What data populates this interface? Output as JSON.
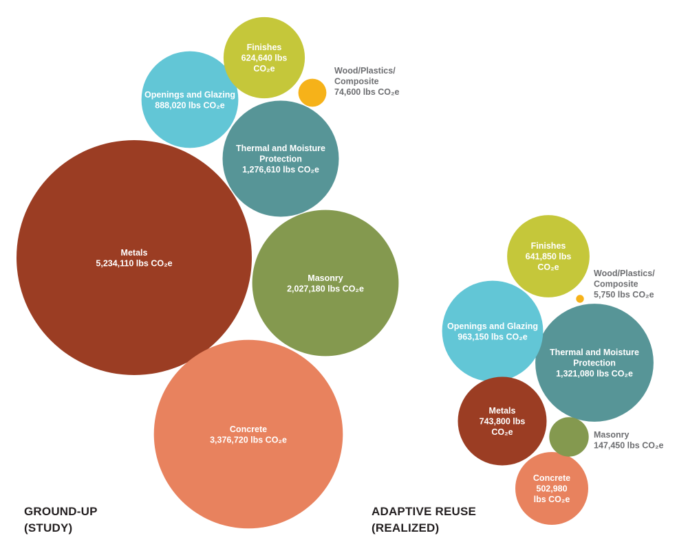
{
  "chart_data": [
    {
      "type": "bubble",
      "title_lines": [
        "GROUND-UP",
        "(STUDY)"
      ],
      "unit": "lbs CO₂e",
      "series": [
        {
          "key": "metals",
          "name": "Metals",
          "value": 5234110,
          "color": "#9b3d23",
          "label": [
            "Metals",
            "5,234,110 lbs CO₂e"
          ]
        },
        {
          "key": "concrete",
          "name": "Concrete",
          "value": 3376720,
          "color": "#e8825e",
          "label": [
            "Concrete",
            "3,376,720 lbs CO₂e"
          ]
        },
        {
          "key": "masonry",
          "name": "Masonry",
          "value": 2027180,
          "color": "#84994f",
          "label": [
            "Masonry",
            "2,027,180 lbs CO₂e"
          ]
        },
        {
          "key": "thermal",
          "name": "Thermal and Moisture Protection",
          "value": 1276610,
          "color": "#579597",
          "label": [
            "Thermal and Moisture",
            "Protection",
            "1,276,610 lbs CO₂e"
          ]
        },
        {
          "key": "openings",
          "name": "Openings and Glazing",
          "value": 888020,
          "color": "#62c6d6",
          "label": [
            "Openings and Glazing",
            "888,020 lbs CO₂e"
          ]
        },
        {
          "key": "finishes",
          "name": "Finishes",
          "value": 624640,
          "color": "#c5c73a",
          "label": [
            "Finishes",
            "624,640 lbs",
            "CO₂e"
          ]
        },
        {
          "key": "wood",
          "name": "Wood/Plastics/Composite",
          "value": 74600,
          "color": "#f6b219",
          "label": [
            "Wood/Plastics/",
            "Composite",
            "74,600 lbs CO₂e"
          ]
        }
      ]
    },
    {
      "type": "bubble",
      "title_lines": [
        "ADAPTIVE REUSE",
        "(REALIZED)"
      ],
      "unit": "lbs CO₂e",
      "series": [
        {
          "key": "thermal",
          "name": "Thermal and Moisture Protection",
          "value": 1321080,
          "color": "#579597",
          "label": [
            "Thermal and Moisture",
            "Protection",
            "1,321,080 lbs CO₂e"
          ]
        },
        {
          "key": "openings",
          "name": "Openings and Glazing",
          "value": 963150,
          "color": "#62c6d6",
          "label": [
            "Openings and Glazing",
            "963,150 lbs CO₂e"
          ]
        },
        {
          "key": "metals",
          "name": "Metals",
          "value": 743800,
          "color": "#9b3d23",
          "label": [
            "Metals",
            "743,800 lbs",
            "CO₂e"
          ]
        },
        {
          "key": "finishes",
          "name": "Finishes",
          "value": 641850,
          "color": "#c5c73a",
          "label": [
            "Finishes",
            "641,850 lbs",
            "CO₂e"
          ]
        },
        {
          "key": "concrete",
          "name": "Concrete",
          "value": 502980,
          "color": "#e8825e",
          "label": [
            "Concrete",
            "502,980",
            "lbs CO₂e"
          ]
        },
        {
          "key": "masonry",
          "name": "Masonry",
          "value": 147450,
          "color": "#84994f",
          "label": [
            "Masonry",
            "147,450 lbs CO₂e"
          ]
        },
        {
          "key": "wood",
          "name": "Wood/Plastics/Composite",
          "value": 5750,
          "color": "#f6b219",
          "label": [
            "Wood/Plastics/",
            "Composite",
            "5,750 lbs CO₂e"
          ]
        }
      ]
    }
  ]
}
